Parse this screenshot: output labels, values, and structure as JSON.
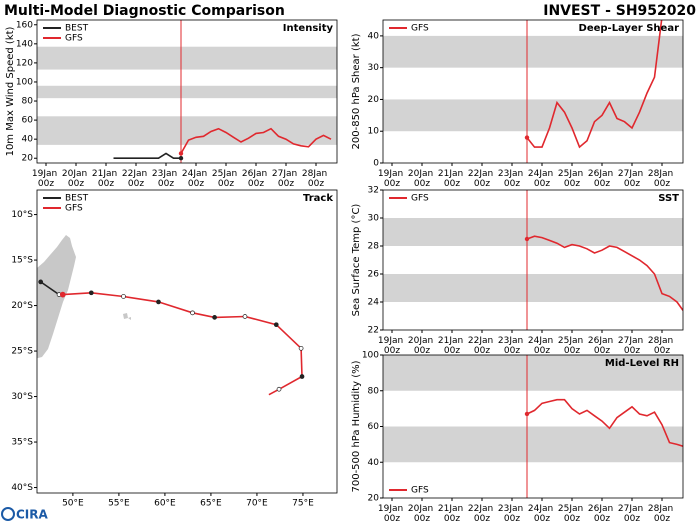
{
  "header": {
    "left": "Multi-Model Diagnostic Comparison",
    "right": "INVEST - SH952020",
    "logo": "CIRA"
  },
  "chart_data": [
    {
      "type": "line",
      "title": "Intensity",
      "ylabel": "10m Max Wind Speed (kt)",
      "legend": "upper left",
      "xlim": [
        18.7,
        28.7
      ],
      "ylim": [
        15,
        165
      ],
      "yticks": [
        20,
        40,
        60,
        80,
        100,
        120,
        140,
        160
      ],
      "xticks": [
        {
          "value": 19,
          "label": "19Jan 00z"
        },
        {
          "value": 20,
          "label": "20Jan 00z"
        },
        {
          "value": 21,
          "label": "21Jan 00z"
        },
        {
          "value": 22,
          "label": "22Jan 00z"
        },
        {
          "value": 23,
          "label": "23Jan 00z"
        },
        {
          "value": 24,
          "label": "24Jan 00z"
        },
        {
          "value": 25,
          "label": "25Jan 00z"
        },
        {
          "value": 26,
          "label": "26Jan 00z"
        },
        {
          "value": 27,
          "label": "27Jan 00z"
        },
        {
          "value": 28,
          "label": "28Jan 00z"
        }
      ],
      "bands": [
        [
          34,
          64
        ],
        [
          83,
          96
        ],
        [
          113,
          137
        ]
      ],
      "band_color": "#d3d3d3",
      "vline": 23.5,
      "vline_color": "#e0282e",
      "series": [
        {
          "name": "BEST",
          "color": "#222222",
          "x": [
            21.25,
            21.5,
            21.75,
            22,
            22.25,
            22.5,
            22.75,
            23,
            23.25,
            23.5
          ],
          "values": [
            20,
            20,
            20,
            20,
            20,
            20,
            20,
            25,
            20,
            20
          ]
        },
        {
          "name": "GFS",
          "color": "#e0282e",
          "x": [
            23.5,
            23.75,
            24,
            24.25,
            24.5,
            24.75,
            25,
            25.25,
            25.5,
            25.75,
            26,
            26.25,
            26.5,
            26.75,
            27,
            27.25,
            27.5,
            27.75,
            28,
            28.25,
            28.5
          ],
          "values": [
            25,
            39,
            42,
            43,
            48,
            51,
            47,
            42,
            37,
            41,
            46,
            47,
            51,
            43,
            40,
            35,
            33,
            32,
            40,
            44,
            40
          ]
        }
      ]
    },
    {
      "type": "line",
      "title": "Deep-Layer Shear",
      "ylabel": "200-850 hPa Shear (kt)",
      "legend": "upper left",
      "xlim": [
        18.7,
        28.7
      ],
      "ylim": [
        0,
        45
      ],
      "yticks": [
        0,
        10,
        20,
        30,
        40
      ],
      "xticks": [
        {
          "value": 19,
          "label": "19Jan 00z"
        },
        {
          "value": 20,
          "label": "20Jan 00z"
        },
        {
          "value": 21,
          "label": "21Jan 00z"
        },
        {
          "value": 22,
          "label": "22Jan 00z"
        },
        {
          "value": 23,
          "label": "23Jan 00z"
        },
        {
          "value": 24,
          "label": "24Jan 00z"
        },
        {
          "value": 25,
          "label": "25Jan 00z"
        },
        {
          "value": 26,
          "label": "26Jan 00z"
        },
        {
          "value": 27,
          "label": "27Jan 00z"
        },
        {
          "value": 28,
          "label": "28Jan 00z"
        }
      ],
      "bands": [
        [
          10,
          20
        ],
        [
          30,
          40
        ]
      ],
      "band_color": "#d3d3d3",
      "vline": 23.5,
      "vline_color": "#e0282e",
      "series": [
        {
          "name": "GFS",
          "color": "#e0282e",
          "x": [
            23.5,
            23.75,
            24,
            24.25,
            24.5,
            24.75,
            25,
            25.25,
            25.5,
            25.75,
            26,
            26.25,
            26.5,
            26.75,
            27,
            27.25,
            27.5,
            27.75,
            28
          ],
          "values": [
            8,
            5,
            5,
            11,
            19,
            16,
            11,
            5,
            7,
            13,
            15,
            19,
            14,
            13,
            11,
            16,
            22,
            27,
            46
          ]
        }
      ]
    },
    {
      "type": "map",
      "title": "Track",
      "legend": "upper left",
      "xlim": [
        46.1,
        78.7
      ],
      "ylim": [
        -40.6,
        -7.3
      ],
      "xticks": [
        {
          "value": 50,
          "label": "50°E"
        },
        {
          "value": 55,
          "label": "55°E"
        },
        {
          "value": 60,
          "label": "60°E"
        },
        {
          "value": 65,
          "label": "65°E"
        },
        {
          "value": 70,
          "label": "70°E"
        },
        {
          "value": 75,
          "label": "75°E"
        }
      ],
      "yticks": [
        {
          "value": -10,
          "label": "10°S"
        },
        {
          "value": -15,
          "label": "15°S"
        },
        {
          "value": -20,
          "label": "20°S"
        },
        {
          "value": -25,
          "label": "25°S"
        },
        {
          "value": -30,
          "label": "30°S"
        },
        {
          "value": -35,
          "label": "35°S"
        },
        {
          "value": -40,
          "label": "40°S"
        }
      ],
      "series": [
        {
          "name": "BEST",
          "color": "#222222",
          "x": [
            46.5,
            48.5
          ],
          "values": [
            -17.4,
            -18.8
          ]
        },
        {
          "name": "GFS",
          "color": "#e0282e",
          "x": [
            48.9,
            52,
            55.5,
            59.3,
            63,
            65.4,
            68.7,
            72.1,
            74.8,
            74.9,
            72.4,
            71.3
          ],
          "values": [
            -18.8,
            -18.6,
            -19,
            -19.6,
            -20.8,
            -21.3,
            -21.2,
            -22.1,
            -24.7,
            -27.8,
            -29.2,
            -29.8
          ]
        }
      ]
    },
    {
      "type": "line",
      "title": "SST",
      "ylabel": "Sea Surface Temp (°C)",
      "legend": "upper left",
      "xlim": [
        18.7,
        28.7
      ],
      "ylim": [
        22,
        32
      ],
      "yticks": [
        22,
        24,
        26,
        28,
        30,
        32
      ],
      "xticks": [
        {
          "value": 19,
          "label": "19Jan 00z"
        },
        {
          "value": 20,
          "label": "20Jan 00z"
        },
        {
          "value": 21,
          "label": "21Jan 00z"
        },
        {
          "value": 22,
          "label": "22Jan 00z"
        },
        {
          "value": 23,
          "label": "23Jan 00z"
        },
        {
          "value": 24,
          "label": "24Jan 00z"
        },
        {
          "value": 25,
          "label": "25Jan 00z"
        },
        {
          "value": 26,
          "label": "26Jan 00z"
        },
        {
          "value": 27,
          "label": "27Jan 00z"
        },
        {
          "value": 28,
          "label": "28Jan 00z"
        }
      ],
      "bands": [
        [
          24,
          26
        ],
        [
          28,
          30
        ]
      ],
      "band_color": "#d3d3d3",
      "vline": 23.5,
      "vline_color": "#e0282e",
      "series": [
        {
          "name": "GFS",
          "color": "#e0282e",
          "x": [
            23.5,
            23.75,
            24,
            24.25,
            24.5,
            24.75,
            25,
            25.25,
            25.5,
            25.75,
            26,
            26.25,
            26.5,
            26.75,
            27,
            27.25,
            27.5,
            27.75,
            28,
            28.25,
            28.5,
            28.7
          ],
          "values": [
            28.5,
            28.7,
            28.6,
            28.4,
            28.2,
            27.9,
            28.1,
            28,
            27.8,
            27.5,
            27.7,
            28,
            27.9,
            27.6,
            27.3,
            27,
            26.6,
            26,
            24.6,
            24.4,
            24,
            23.4
          ]
        }
      ]
    },
    {
      "type": "line",
      "title": "Mid-Level RH",
      "ylabel": "700-500 hPa Humidity (%)",
      "legend": "lower left",
      "xlim": [
        18.7,
        28.7
      ],
      "ylim": [
        20,
        100
      ],
      "yticks": [
        20,
        40,
        60,
        80,
        100
      ],
      "xticks": [
        {
          "value": 19,
          "label": "19Jan 00z"
        },
        {
          "value": 20,
          "label": "20Jan 00z"
        },
        {
          "value": 21,
          "label": "21Jan 00z"
        },
        {
          "value": 22,
          "label": "22Jan 00z"
        },
        {
          "value": 23,
          "label": "23Jan 00z"
        },
        {
          "value": 24,
          "label": "24Jan 00z"
        },
        {
          "value": 25,
          "label": "25Jan 00z"
        },
        {
          "value": 26,
          "label": "26Jan 00z"
        },
        {
          "value": 27,
          "label": "27Jan 00z"
        },
        {
          "value": 28,
          "label": "28Jan 00z"
        }
      ],
      "bands": [
        [
          40,
          60
        ],
        [
          80,
          100
        ]
      ],
      "band_color": "#d3d3d3",
      "vline": 23.5,
      "vline_color": "#e0282e",
      "series": [
        {
          "name": "GFS",
          "color": "#e0282e",
          "x": [
            23.5,
            23.75,
            24,
            24.25,
            24.5,
            24.75,
            25,
            25.25,
            25.5,
            25.75,
            26,
            26.25,
            26.5,
            26.75,
            27,
            27.25,
            27.5,
            27.75,
            28,
            28.25,
            28.5,
            28.7
          ],
          "values": [
            67,
            69,
            73,
            74,
            75,
            75,
            70,
            67,
            69,
            66,
            63,
            59,
            65,
            68,
            71,
            67,
            66,
            68,
            61,
            51,
            50,
            49
          ]
        }
      ]
    }
  ]
}
